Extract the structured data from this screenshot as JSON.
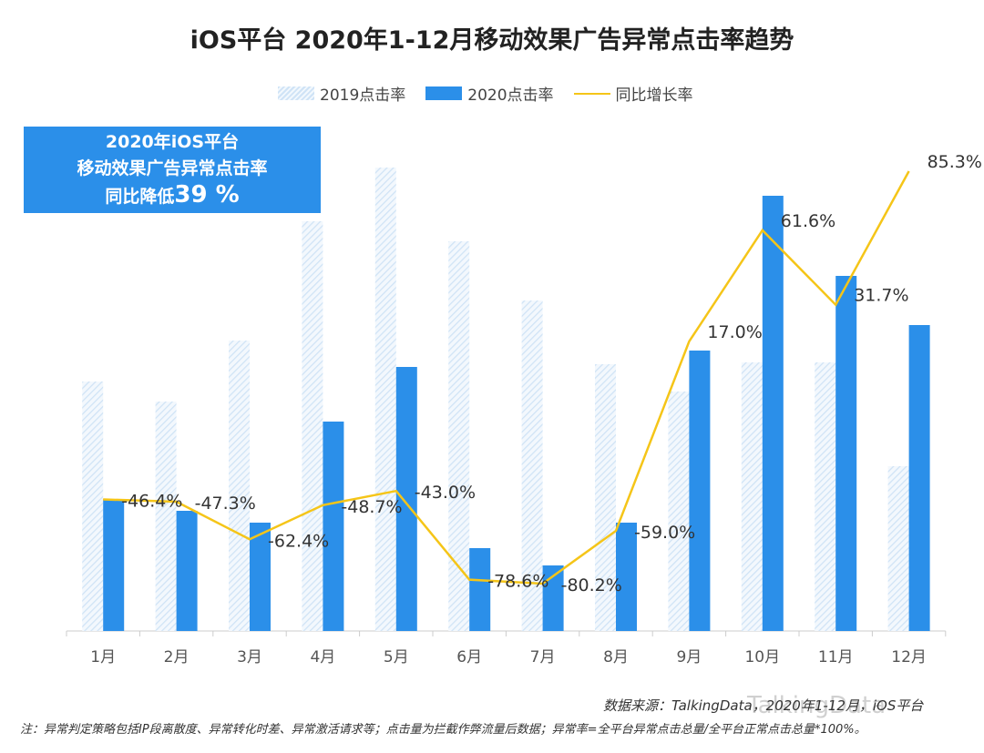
{
  "chart_data": {
    "type": "bar",
    "title": "iOS平台  2020年1-12月移动效果广告异常点击率趋势",
    "categories": [
      "1月",
      "2月",
      "3月",
      "4月",
      "5月",
      "6月",
      "7月",
      "8月",
      "9月",
      "10月",
      "11月",
      "12月"
    ],
    "series": [
      {
        "name": "2019点击率",
        "type": "bar",
        "color": "#d6e8f8",
        "values": [
          274,
          252,
          319,
          450,
          509,
          428,
          363,
          293,
          263,
          295,
          295,
          181
        ]
      },
      {
        "name": "2020点击率",
        "type": "bar",
        "color": "#2b8fe9",
        "values": [
          145,
          132,
          119,
          230,
          290,
          91,
          72,
          119,
          308,
          478,
          390,
          336
        ]
      },
      {
        "name": "同比增长率",
        "type": "line",
        "color": "#f5c518",
        "values": [
          -46.4,
          -47.3,
          -62.4,
          -48.7,
          -43.0,
          -78.6,
          -80.2,
          -59.0,
          17.0,
          61.6,
          31.7,
          85.3
        ],
        "labels": [
          "-46.4%",
          "-47.3%",
          "-62.4%",
          "-48.7%",
          "-43.0%",
          "-78.6%",
          "-80.2%",
          "-59.0%",
          "17.0%",
          "61.6%",
          "31.7%",
          "85.3%"
        ]
      }
    ],
    "legend": "top",
    "grid": false
  },
  "callout": {
    "line1": "2020年iOS平台",
    "line2": "移动效果广告异常点击率",
    "line3_prefix": "同比降低",
    "line3_value": "39 %"
  },
  "source": "数据来源：TalkingData，2020年1-12月，iOS平台",
  "note": "注：异常判定策略包括IP段离散度、异常转化时差、异常激活请求等；点击量为拦截作弊流量后数据；异常率=全平台异常点击总量/全平台正常点击总量*100%。",
  "watermark": "TalkingData"
}
